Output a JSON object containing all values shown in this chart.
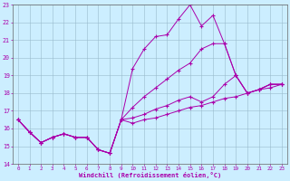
{
  "xlabel": "Windchill (Refroidissement éolien,°C)",
  "x": [
    0,
    1,
    2,
    3,
    4,
    5,
    6,
    7,
    8,
    9,
    10,
    11,
    12,
    13,
    14,
    15,
    16,
    17,
    18,
    19,
    20,
    21,
    22,
    23
  ],
  "line1": [
    16.5,
    15.8,
    15.2,
    15.5,
    15.7,
    15.5,
    15.5,
    14.8,
    14.6,
    16.5,
    19.4,
    20.5,
    21.2,
    21.3,
    22.2,
    23.0,
    21.8,
    22.4,
    20.8,
    19.0,
    18.0,
    18.2,
    18.5,
    18.5
  ],
  "line2": [
    16.5,
    15.8,
    15.2,
    15.5,
    15.7,
    15.5,
    15.5,
    14.8,
    14.6,
    16.5,
    17.2,
    17.8,
    18.3,
    18.8,
    19.3,
    19.7,
    20.5,
    20.8,
    20.8,
    19.0,
    18.0,
    18.2,
    18.5,
    18.5
  ],
  "line3": [
    16.5,
    15.8,
    15.2,
    15.5,
    15.7,
    15.5,
    15.5,
    14.8,
    14.6,
    16.5,
    16.6,
    16.8,
    17.1,
    17.3,
    17.6,
    17.8,
    17.5,
    17.8,
    18.5,
    19.0,
    18.0,
    18.2,
    18.5,
    18.5
  ],
  "line4": [
    16.5,
    15.8,
    15.2,
    15.5,
    15.7,
    15.5,
    15.5,
    14.8,
    14.6,
    16.5,
    16.3,
    16.5,
    16.6,
    16.8,
    17.0,
    17.2,
    17.3,
    17.5,
    17.7,
    17.8,
    18.0,
    18.2,
    18.3,
    18.5
  ],
  "color": "#aa00aa",
  "bg_color": "#cceeff",
  "grid_color": "#99bbcc",
  "ylim": [
    14,
    23
  ],
  "yticks": [
    14,
    15,
    16,
    17,
    18,
    19,
    20,
    21,
    22,
    23
  ],
  "xticks": [
    0,
    1,
    2,
    3,
    4,
    5,
    6,
    7,
    8,
    9,
    10,
    11,
    12,
    13,
    14,
    15,
    16,
    17,
    18,
    19,
    20,
    21,
    22,
    23
  ]
}
